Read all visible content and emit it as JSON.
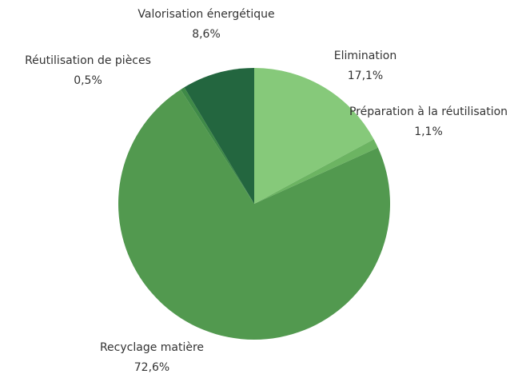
{
  "chart_data": {
    "type": "pie",
    "categories": [
      "Elimination",
      "Préparation à la réutilisation",
      "Recyclage matière",
      "Réutilisation de pièces",
      "Valorisation énergétique"
    ],
    "values": [
      17.1,
      1.1,
      72.6,
      0.5,
      8.6
    ],
    "value_labels": [
      "17,1%",
      "1,1%",
      "72,6%",
      "0,5%",
      "8,6%"
    ],
    "colors": [
      "#86c97a",
      "#6cb462",
      "#52994f",
      "#3f8a47",
      "#23663f"
    ]
  }
}
